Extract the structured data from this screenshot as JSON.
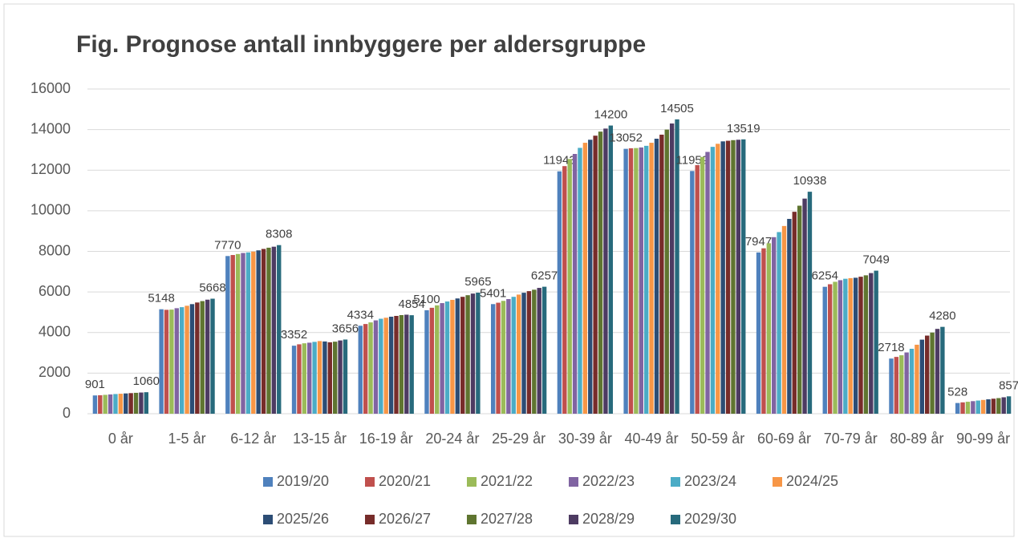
{
  "chart_data": {
    "type": "bar",
    "title": "Fig. Prognose antall innbyggere per aldersgruppe",
    "categories": [
      "0 år",
      "1-5 år",
      "6-12 år",
      "13-15 år",
      "16-19 år",
      "20-24 år",
      "25-29 år",
      "30-39 år",
      "40-49 år",
      "50-59 år",
      "60-69 år",
      "70-79 år",
      "80-89 år",
      "90-99 år"
    ],
    "series": [
      {
        "name": "2019/20",
        "color": "#4f81bd",
        "data_labels": true,
        "values": [
          901,
          5148,
          7770,
          3352,
          4334,
          5100,
          5401,
          11943,
          13052,
          11959,
          7947,
          6254,
          2718,
          528
        ]
      },
      {
        "name": "2020/21",
        "color": "#c0504d",
        "values": [
          910,
          5120,
          7820,
          3420,
          4420,
          5220,
          5470,
          12200,
          13080,
          12250,
          8150,
          6380,
          2800,
          560
        ]
      },
      {
        "name": "2021/22",
        "color": "#9bbb59",
        "values": [
          930,
          5130,
          7870,
          3470,
          4500,
          5340,
          5560,
          12550,
          13090,
          12650,
          8400,
          6500,
          2880,
          590
        ]
      },
      {
        "name": "2022/23",
        "color": "#8064a2",
        "values": [
          950,
          5200,
          7920,
          3500,
          4600,
          5450,
          5650,
          12800,
          13120,
          12900,
          8700,
          6580,
          3020,
          620
        ]
      },
      {
        "name": "2023/24",
        "color": "#4bacc6",
        "values": [
          970,
          5250,
          7950,
          3540,
          4680,
          5530,
          5760,
          13100,
          13200,
          13150,
          8950,
          6650,
          3200,
          650
        ]
      },
      {
        "name": "2024/25",
        "color": "#f79646",
        "values": [
          985,
          5320,
          7990,
          3580,
          4730,
          5610,
          5870,
          13350,
          13350,
          13300,
          9250,
          6680,
          3400,
          680
        ]
      },
      {
        "name": "2025/26",
        "color": "#2c4d75",
        "values": [
          1000,
          5400,
          8050,
          3560,
          4780,
          5680,
          5960,
          13500,
          13550,
          13420,
          9600,
          6700,
          3650,
          710
        ]
      },
      {
        "name": "2026/27",
        "color": "#772c2a",
        "values": [
          1015,
          5480,
          8120,
          3520,
          4820,
          5760,
          6040,
          13700,
          13750,
          13450,
          9950,
          6750,
          3850,
          740
        ]
      },
      {
        "name": "2027/28",
        "color": "#5f7530",
        "values": [
          1030,
          5550,
          8180,
          3550,
          4860,
          5840,
          6110,
          13900,
          14000,
          13480,
          10250,
          6820,
          4000,
          770
        ]
      },
      {
        "name": "2028/29",
        "color": "#4d3b62",
        "values": [
          1045,
          5620,
          8230,
          3610,
          4880,
          5920,
          6200,
          14050,
          14300,
          13500,
          10600,
          6930,
          4180,
          810
        ]
      },
      {
        "name": "2029/30",
        "color": "#276a7c",
        "data_labels": true,
        "values": [
          1060,
          5668,
          8308,
          3656,
          4854,
          5965,
          6257,
          14200,
          14505,
          13519,
          10938,
          7049,
          4280,
          857
        ]
      }
    ],
    "ylim": [
      0,
      16000
    ],
    "yticks": [
      0,
      2000,
      4000,
      6000,
      8000,
      10000,
      12000,
      14000,
      16000
    ],
    "grid": true,
    "legend": "bottom"
  }
}
